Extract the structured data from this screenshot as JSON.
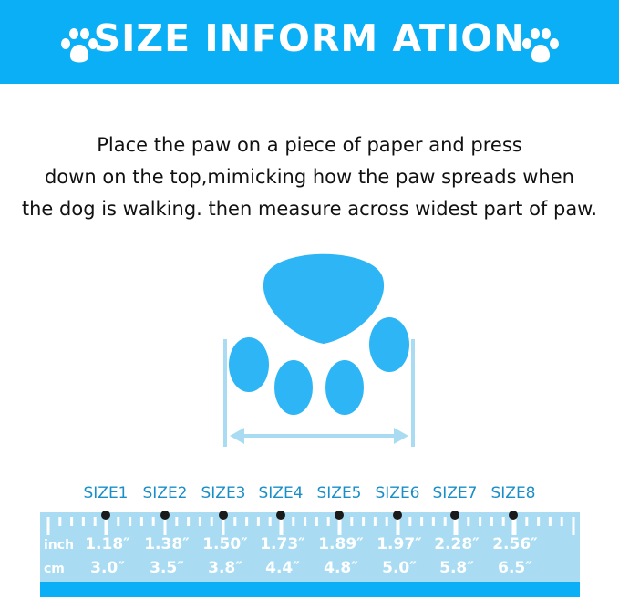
{
  "header": {
    "title": "SIZE INFORM ATION",
    "icon": "paw-icon"
  },
  "instructions": [
    "Place the paw on a piece of paper and press",
    "down on the top,mimicking how the paw spreads when",
    "the dog is walking. then measure across widest part of paw."
  ],
  "colors": {
    "primary": "#0aaff5",
    "ruler": "#a9dcf3",
    "paw": "#2db5f5",
    "label": "#1a8fc7"
  },
  "sizes": [
    {
      "label": "SIZE1",
      "inch": "1.18″",
      "cm": "3.0″"
    },
    {
      "label": "SIZE2",
      "inch": "1.38″",
      "cm": "3.5″"
    },
    {
      "label": "SIZE3",
      "inch": "1.50″",
      "cm": "3.8″"
    },
    {
      "label": "SIZE4",
      "inch": "1.73″",
      "cm": "4.4″"
    },
    {
      "label": "SIZE5",
      "inch": "1.89″",
      "cm": "4.8″"
    },
    {
      "label": "SIZE6",
      "inch": "1.97″",
      "cm": "5.0″"
    },
    {
      "label": "SIZE7",
      "inch": "2.28″",
      "cm": "5.8″"
    },
    {
      "label": "SIZE8",
      "inch": "2.56″",
      "cm": "6.5″"
    }
  ],
  "units": {
    "inch": "inch",
    "cm": "cm"
  }
}
